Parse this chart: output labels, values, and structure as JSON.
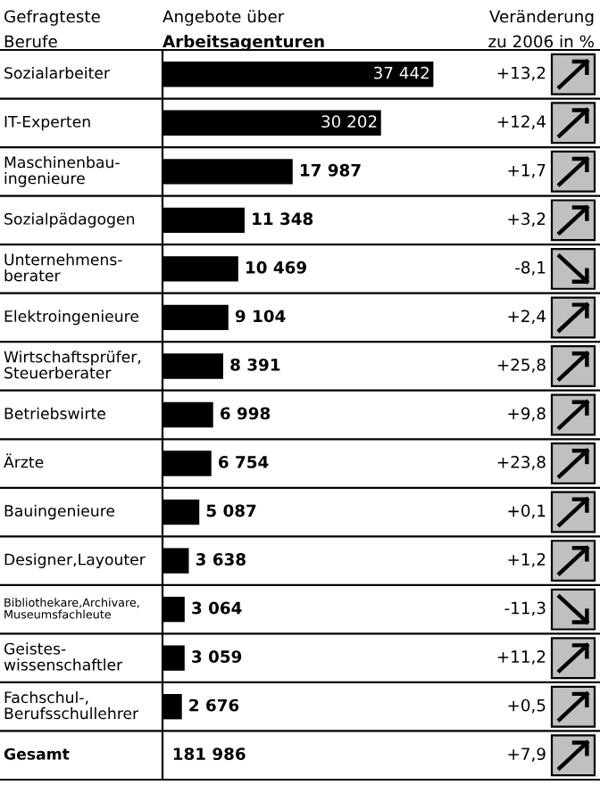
{
  "chart_data": {
    "type": "bar",
    "orientation": "horizontal",
    "title": "Angebote über\nArbeitsagenturen",
    "ylabel": "Gefragteste\nBerufe",
    "categories": [
      "Sozialarbeiter",
      "IT-Experten",
      "Maschinenbau-\ningenieure",
      "Sozialpädagogen",
      "Unternehmens-\nberater",
      "Elektroingenieure",
      "Wirtschaftsprüfer,\nSteuerberater",
      "Betriebswirte",
      "Ärzte",
      "Bauingenieure",
      "Designer,Layouter",
      "Bibliothekare,Archivare,\nMuseumsfachleute",
      "Geistes-\nwissenschaftler",
      "Fachschul-,\nBerufsschullehrer",
      "Gesamt"
    ],
    "values": [
      37442,
      30202,
      17987,
      11348,
      10469,
      9104,
      8391,
      6998,
      6754,
      5087,
      3638,
      3064,
      3059,
      2676,
      null
    ],
    "value_labels": [
      "37 442",
      "30 202",
      "17 987",
      "11 348",
      "10 469",
      "9 104",
      "8 391",
      "6 998",
      "6 754",
      "5 087",
      "3 638",
      "3 064",
      "3 059",
      "2 676",
      "181 986"
    ],
    "color": "#000000",
    "annotations": [
      "Veränderung\nzu 2006 in %",
      "+13,2",
      "+12,4",
      "+1,7",
      "+3,2",
      "-8,1",
      "+2,4",
      "+25,8",
      "+9,8",
      "+23,8",
      "+0,1",
      "+1,2",
      "-11,3",
      "+11,2",
      "+0,5",
      "+7,9"
    ]
  }
}
